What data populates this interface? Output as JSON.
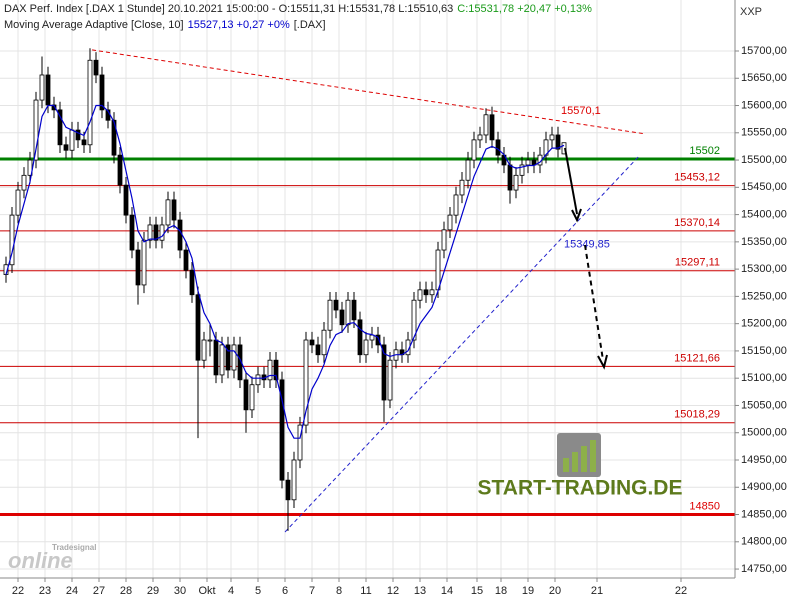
{
  "chart_data": {
    "type": "candlestick",
    "title": "DAX Perf. Index [.DAX  1 Stunde] 20.10.2021 15:00:00 - O:15511,31 H:15531,78 L:15510,63",
    "title_close": "C:15531,78 +20,47 +0,13%",
    "indicator": "Moving Average Adaptive [Close, 10]",
    "indicator_value": "15527,13 +0,27 +0%",
    "indicator_symbol": "[.DAX]",
    "axis_code": "XXP",
    "watermark": "START-TRADING.DE",
    "logo_top": "Tradesignal",
    "logo_main": "online",
    "xlim": [
      0,
      245
    ],
    "ylim": [
      14733.6,
      15793.5
    ],
    "grid": true,
    "xticks": [
      {
        "value": 6,
        "label": "22"
      },
      {
        "value": 15,
        "label": "23"
      },
      {
        "value": 24,
        "label": "24"
      },
      {
        "value": 33,
        "label": "27"
      },
      {
        "value": 42,
        "label": "28"
      },
      {
        "value": 51,
        "label": "29"
      },
      {
        "value": 60,
        "label": "30"
      },
      {
        "value": 69,
        "label": "Okt"
      },
      {
        "value": 77,
        "label": "4"
      },
      {
        "value": 86,
        "label": "5"
      },
      {
        "value": 95,
        "label": "6"
      },
      {
        "value": 104,
        "label": "7"
      },
      {
        "value": 113,
        "label": "8"
      },
      {
        "value": 122,
        "label": "11"
      },
      {
        "value": 131,
        "label": "12"
      },
      {
        "value": 140,
        "label": "13"
      },
      {
        "value": 149,
        "label": "14"
      },
      {
        "value": 159,
        "label": "15"
      },
      {
        "value": 167,
        "label": "18"
      },
      {
        "value": 176,
        "label": "19"
      },
      {
        "value": 185,
        "label": "20"
      },
      {
        "value": 199,
        "label": "21"
      },
      {
        "value": 227,
        "label": "22"
      }
    ],
    "yticks": [
      {
        "value": 15700,
        "label": "15700,00"
      },
      {
        "value": 15650,
        "label": "15650,00"
      },
      {
        "value": 15600,
        "label": "15600,00"
      },
      {
        "value": 15550,
        "label": "15550,00"
      },
      {
        "value": 15500,
        "label": "15500,00"
      },
      {
        "value": 15450,
        "label": "15450,00"
      },
      {
        "value": 15400,
        "label": "15400,00"
      },
      {
        "value": 15350,
        "label": "15350,00"
      },
      {
        "value": 15300,
        "label": "15300,00"
      },
      {
        "value": 15250,
        "label": "15250,00"
      },
      {
        "value": 15200,
        "label": "15200,00"
      },
      {
        "value": 15150,
        "label": "15150,00"
      },
      {
        "value": 15100,
        "label": "15100,00"
      },
      {
        "value": 15050,
        "label": "15050,00"
      },
      {
        "value": 15000,
        "label": "15000,00"
      },
      {
        "value": 14950,
        "label": "14950,00"
      },
      {
        "value": 14900,
        "label": "14900,00"
      },
      {
        "value": 14850,
        "label": "14850,00"
      },
      {
        "value": 14800,
        "label": "14800,00"
      },
      {
        "value": 14750,
        "label": "14750,00"
      }
    ],
    "x": [
      2,
      4,
      6,
      8,
      10,
      12,
      14,
      16,
      18,
      20,
      22,
      24,
      26,
      28,
      30,
      32,
      34,
      36,
      38,
      40,
      42,
      44,
      46,
      48,
      50,
      52,
      54,
      56,
      58,
      60,
      62,
      64,
      66,
      68,
      70,
      72,
      74,
      76,
      78,
      80,
      82,
      84,
      86,
      88,
      90,
      92,
      94,
      96,
      98,
      100,
      102,
      104,
      106,
      108,
      110,
      112,
      114,
      116,
      118,
      120,
      122,
      124,
      126,
      128,
      130,
      132,
      134,
      136,
      138,
      140,
      142,
      144,
      146,
      148,
      150,
      152,
      154,
      156,
      158,
      160,
      162,
      164,
      166,
      168,
      170,
      172,
      174,
      176,
      178,
      180,
      182,
      184,
      186,
      188
    ],
    "open": [
      15290,
      15308,
      15399,
      15445,
      15472,
      15500,
      15610,
      15656,
      15601,
      15592,
      15528,
      15518,
      15555,
      15537,
      15528,
      15683,
      15656,
      15592,
      15573,
      15509,
      15454,
      15399,
      15335,
      15271,
      15353,
      15381,
      15353,
      15381,
      15427,
      15390,
      15335,
      15298,
      15253,
      15133,
      15170,
      15170,
      15106,
      15161,
      15115,
      15161,
      15097,
      15042,
      15088,
      15106,
      15097,
      15133,
      15097,
      14913,
      14877,
      14950,
      15014,
      15170,
      15161,
      15143,
      15188,
      15243,
      15225,
      15198,
      15243,
      15207,
      15143,
      15170,
      15179,
      15161,
      15060,
      15133,
      15152,
      15143,
      15170,
      15243,
      15262,
      15253,
      15262,
      15335,
      15372,
      15399,
      15436,
      15463,
      15500,
      15537,
      15546,
      15583,
      15537,
      15509,
      15491,
      15445,
      15472,
      15491,
      15500,
      15491,
      15509,
      15537,
      15546,
      15511.31
    ],
    "high": [
      15323,
      15414,
      15460,
      15487,
      15515,
      15625,
      15690,
      15671,
      15616,
      15607,
      15543,
      15570,
      15570,
      15552,
      15705,
      15698,
      15671,
      15607,
      15588,
      15524,
      15469,
      15414,
      15350,
      15368,
      15396,
      15396,
      15396,
      15442,
      15442,
      15405,
      15350,
      15313,
      15268,
      15185,
      15200,
      15185,
      15176,
      15176,
      15176,
      15176,
      15112,
      15103,
      15121,
      15121,
      15148,
      15148,
      15112,
      14928,
      14965,
      15029,
      15185,
      15185,
      15176,
      15203,
      15258,
      15258,
      15240,
      15258,
      15258,
      15222,
      15185,
      15194,
      15194,
      15176,
      15148,
      15167,
      15167,
      15185,
      15258,
      15277,
      15277,
      15277,
      15350,
      15387,
      15414,
      15451,
      15478,
      15515,
      15552,
      15561,
      15595,
      15598,
      15552,
      15524,
      15506,
      15487,
      15506,
      15515,
      15515,
      15524,
      15552,
      15561,
      15561,
      15531.78
    ],
    "low": [
      15275,
      15293,
      15384,
      15430,
      15457,
      15485,
      15595,
      15586,
      15577,
      15513,
      15503,
      15503,
      15522,
      15513,
      15513,
      15641,
      15577,
      15558,
      15494,
      15439,
      15384,
      15320,
      15235,
      15256,
      15338,
      15338,
      15338,
      15366,
      15375,
      15320,
      15283,
      15238,
      14990,
      15118,
      15140,
      15091,
      15091,
      15100,
      15100,
      15082,
      15000,
      15027,
      15073,
      15082,
      15082,
      15082,
      14898,
      14820,
      14862,
      14935,
      14999,
      15146,
      15128,
      15128,
      15173,
      15210,
      15183,
      15183,
      15192,
      15128,
      15128,
      15155,
      15146,
      15020,
      15045,
      15118,
      15128,
      15128,
      15155,
      15228,
      15238,
      15238,
      15247,
      15320,
      15357,
      15384,
      15421,
      15448,
      15485,
      15522,
      15531,
      15522,
      15494,
      15476,
      15420,
      15430,
      15457,
      15476,
      15476,
      15476,
      15494,
      15522,
      15505,
      15510.63
    ],
    "close": [
      15308,
      15399,
      15445,
      15472,
      15500,
      15610,
      15656,
      15601,
      15592,
      15528,
      15518,
      15555,
      15537,
      15528,
      15683,
      15656,
      15592,
      15573,
      15509,
      15454,
      15399,
      15335,
      15271,
      15353,
      15381,
      15353,
      15381,
      15427,
      15390,
      15335,
      15298,
      15253,
      15133,
      15170,
      15170,
      15106,
      15161,
      15115,
      15161,
      15097,
      15042,
      15088,
      15106,
      15097,
      15133,
      15097,
      14913,
      14877,
      14950,
      15014,
      15170,
      15161,
      15143,
      15188,
      15243,
      15225,
      15198,
      15243,
      15207,
      15143,
      15170,
      15179,
      15161,
      15060,
      15133,
      15152,
      15143,
      15170,
      15243,
      15262,
      15253,
      15262,
      15335,
      15372,
      15399,
      15436,
      15463,
      15500,
      15537,
      15546,
      15583,
      15537,
      15509,
      15491,
      15445,
      15472,
      15491,
      15500,
      15491,
      15509,
      15537,
      15546,
      15520,
      15531.78
    ],
    "candle_up_color": "#ffffff",
    "candle_down_color": "#000000",
    "ma": {
      "color": "#0000cc",
      "values": [
        15290,
        15330,
        15380,
        15420,
        15460,
        15520,
        15580,
        15600,
        15600,
        15580,
        15560,
        15555,
        15550,
        15545,
        15570,
        15600,
        15600,
        15590,
        15570,
        15530,
        15480,
        15430,
        15370,
        15350,
        15355,
        15355,
        15360,
        15375,
        15380,
        15370,
        15350,
        15320,
        15260,
        15220,
        15200,
        15170,
        15165,
        15150,
        15150,
        15135,
        15110,
        15100,
        15100,
        15100,
        15105,
        15105,
        15060,
        15010,
        14990,
        14990,
        15040,
        15080,
        15100,
        15125,
        15160,
        15180,
        15185,
        15200,
        15202,
        15190,
        15182,
        15180,
        15175,
        15145,
        15140,
        15143,
        15143,
        15150,
        15175,
        15200,
        15215,
        15230,
        15260,
        15295,
        15330,
        15365,
        15400,
        15435,
        15470,
        15495,
        15520,
        15525,
        15520,
        15510,
        15490,
        15485,
        15487,
        15490,
        15490,
        15496,
        15510,
        15522,
        15522,
        15527.13
      ]
    },
    "levels": [
      {
        "value": 15502,
        "label": "15502",
        "color": "#008000",
        "width": 3
      },
      {
        "value": 15453.12,
        "label": "15453,12",
        "color": "#cc0000",
        "width": 1
      },
      {
        "value": 15370.14,
        "label": "15370,14",
        "color": "#cc0000",
        "width": 1
      },
      {
        "value": 15297.11,
        "label": "15297,11",
        "color": "#cc0000",
        "width": 1
      },
      {
        "value": 15121.66,
        "label": "15121,66",
        "color": "#cc0000",
        "width": 1
      },
      {
        "value": 15018.29,
        "label": "15018,29",
        "color": "#cc0000",
        "width": 1
      },
      {
        "value": 14850,
        "label": "14850",
        "color": "#dd0000",
        "width": 3
      }
    ],
    "trendlines": [
      {
        "x": [
          30.7,
          215
        ],
        "y": [
          15702,
          15548
        ],
        "color": "#dd0000",
        "label": "15570,1",
        "label_x": 187,
        "label_y": 15590
      },
      {
        "x": [
          95,
          213.3
        ],
        "y": [
          14818,
          15509
        ],
        "color": "#2222cc",
        "label": "15349,85",
        "label_x": 188,
        "label_y": 15345
      }
    ]
  }
}
